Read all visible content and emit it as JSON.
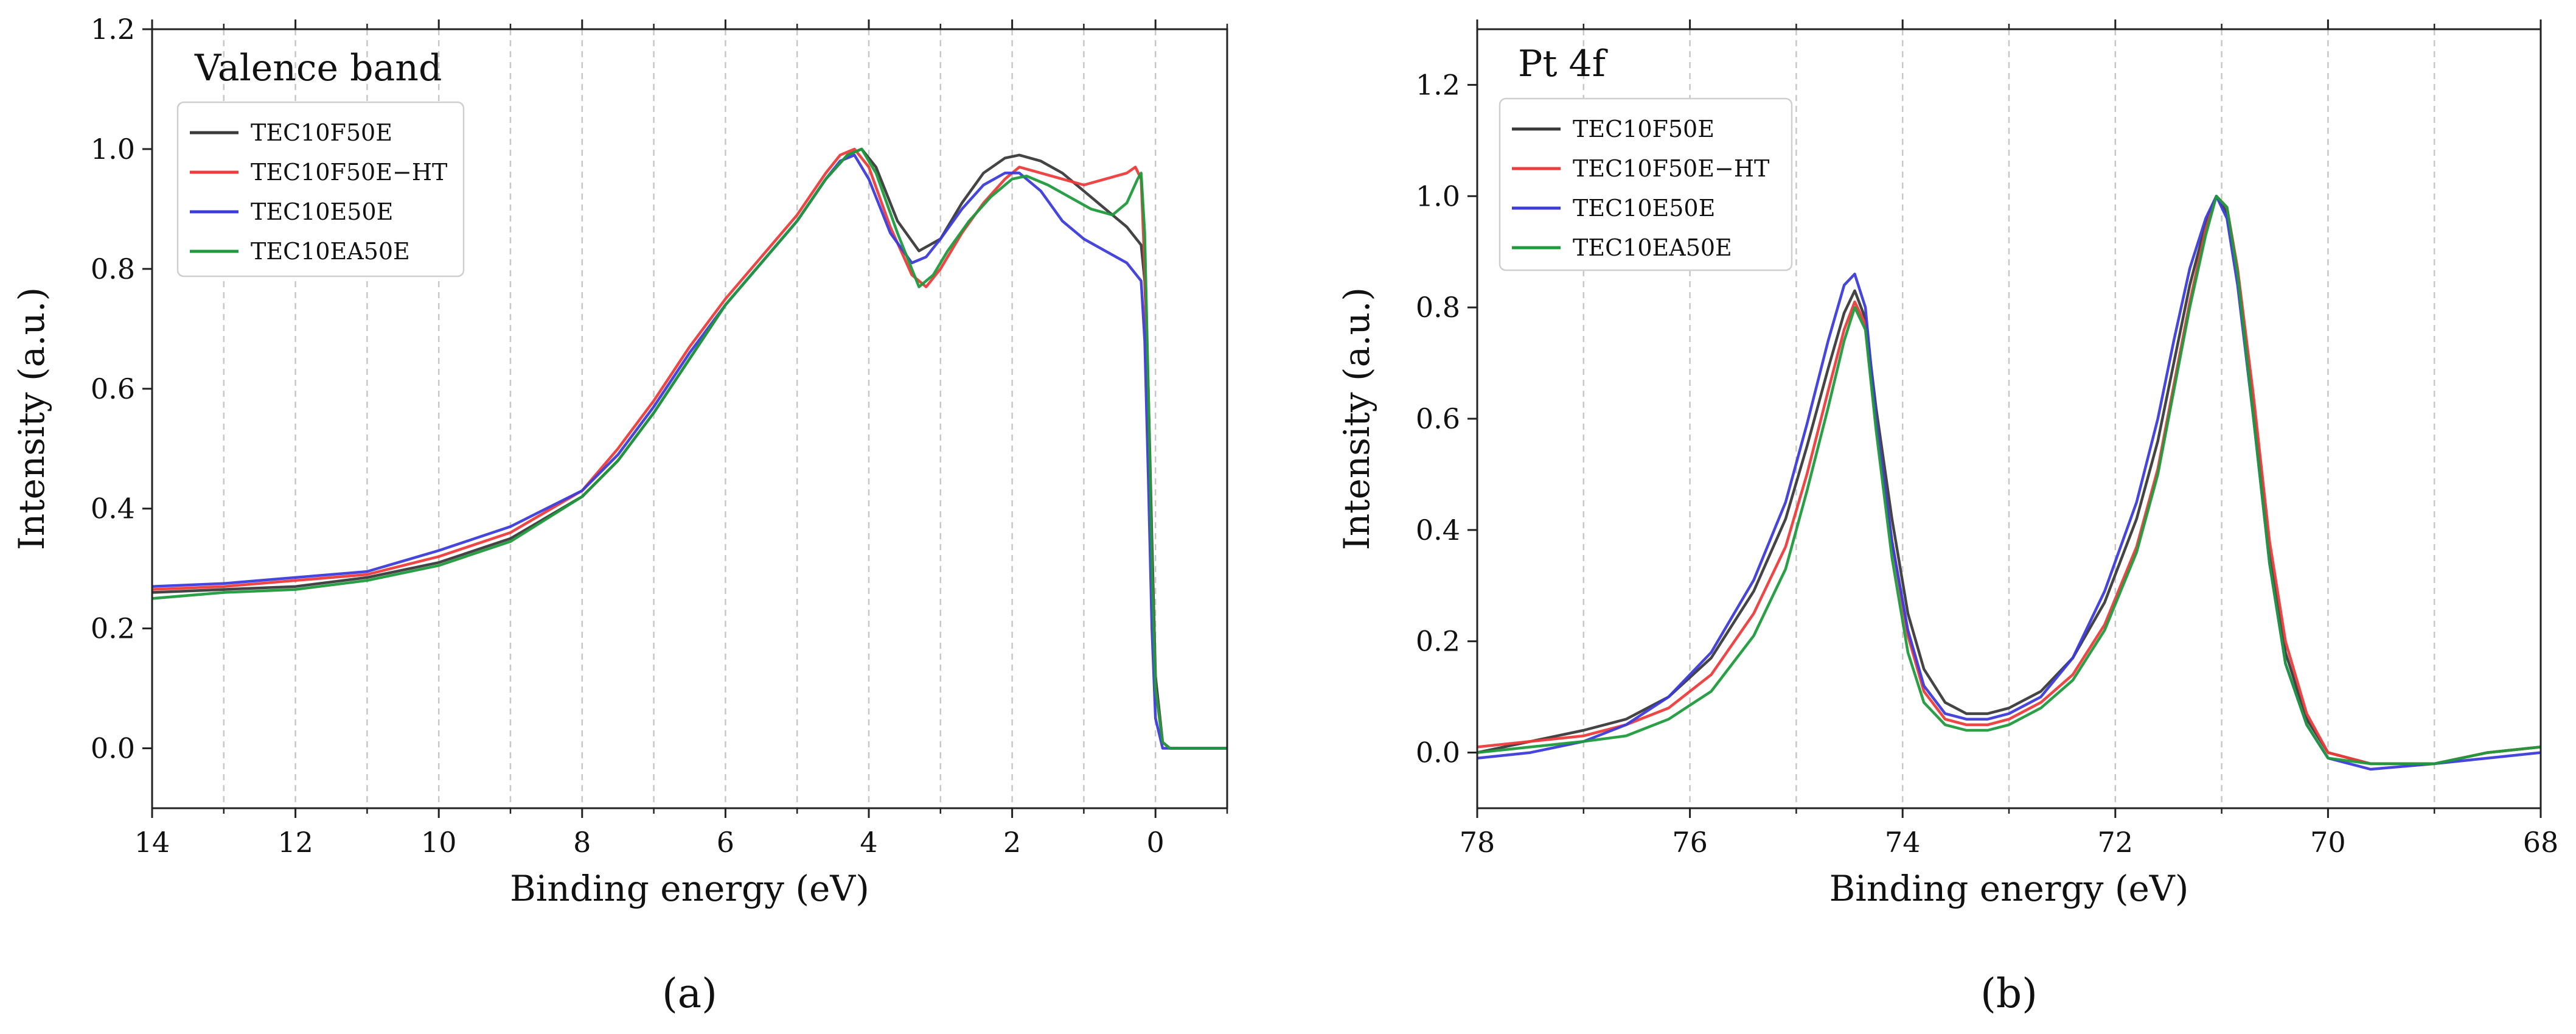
{
  "chart_data": [
    {
      "type": "line",
      "panel_label": "(a)",
      "title": "Valence band",
      "xlabel": "Binding energy (eV)",
      "ylabel": "Intensity (a.u.)",
      "xlim": [
        14,
        -1
      ],
      "ylim": [
        -0.1,
        1.2
      ],
      "x_ticks": [
        14,
        12,
        10,
        8,
        6,
        4,
        2,
        0
      ],
      "x_tick_labels": [
        "14",
        "12",
        "10",
        "8",
        "6",
        "4",
        "2",
        "0"
      ],
      "x_minor_ticks": [
        13,
        11,
        9,
        7,
        5,
        3,
        1,
        -1
      ],
      "y_ticks": [
        0.0,
        0.2,
        0.4,
        0.6,
        0.8,
        1.0,
        1.2
      ],
      "y_tick_labels": [
        "0.0",
        "0.2",
        "0.4",
        "0.6",
        "0.8",
        "1.0",
        "1.2"
      ],
      "vertical_grid": true,
      "legend_position": "upper-left",
      "series": [
        {
          "name": "TEC10F50E",
          "color": "#3a3a3a",
          "x": [
            14,
            13,
            12,
            11,
            10,
            9,
            8,
            7.5,
            7,
            6.5,
            6,
            5.5,
            5,
            4.6,
            4.3,
            4.1,
            3.9,
            3.6,
            3.3,
            3,
            2.7,
            2.4,
            2.1,
            1.9,
            1.6,
            1.3,
            1,
            0.7,
            0.4,
            0.2,
            0.15,
            0.1,
            0.05,
            0,
            -0.1,
            -0.2,
            -0.5,
            -1
          ],
          "y": [
            0.26,
            0.265,
            0.27,
            0.285,
            0.31,
            0.35,
            0.42,
            0.48,
            0.56,
            0.65,
            0.74,
            0.81,
            0.88,
            0.95,
            0.99,
            1.0,
            0.97,
            0.88,
            0.83,
            0.85,
            0.91,
            0.96,
            0.985,
            0.99,
            0.98,
            0.96,
            0.93,
            0.9,
            0.87,
            0.84,
            0.78,
            0.6,
            0.35,
            0.12,
            0.01,
            0.0,
            0.0,
            0.0
          ]
        },
        {
          "name": "TEC10F50E−HT",
          "color": "#ee3b3b",
          "x": [
            14,
            13,
            12,
            11,
            10,
            9,
            8,
            7.5,
            7,
            6.5,
            6,
            5.5,
            5,
            4.6,
            4.4,
            4.2,
            4,
            3.7,
            3.4,
            3.2,
            3,
            2.7,
            2.4,
            2.1,
            1.9,
            1.6,
            1.3,
            1,
            0.7,
            0.4,
            0.28,
            0.2,
            0.15,
            0.1,
            0.05,
            0,
            -0.1,
            -0.2,
            -0.5,
            -1
          ],
          "y": [
            0.265,
            0.27,
            0.28,
            0.29,
            0.32,
            0.36,
            0.43,
            0.5,
            0.58,
            0.67,
            0.75,
            0.82,
            0.89,
            0.96,
            0.99,
            1.0,
            0.97,
            0.87,
            0.79,
            0.77,
            0.8,
            0.86,
            0.91,
            0.95,
            0.97,
            0.96,
            0.95,
            0.94,
            0.95,
            0.96,
            0.97,
            0.95,
            0.8,
            0.55,
            0.3,
            0.1,
            0.01,
            0.0,
            0.0,
            0.0
          ]
        },
        {
          "name": "TEC10E50E",
          "color": "#3c3cdc",
          "x": [
            14,
            13,
            12,
            11,
            10,
            9,
            8,
            7.5,
            7,
            6.5,
            6,
            5.5,
            5,
            4.6,
            4.4,
            4.2,
            4,
            3.7,
            3.4,
            3.2,
            3,
            2.7,
            2.4,
            2.1,
            1.9,
            1.6,
            1.3,
            1,
            0.7,
            0.4,
            0.2,
            0.15,
            0.1,
            0.05,
            0,
            -0.1,
            -0.2,
            -0.5,
            -1
          ],
          "y": [
            0.27,
            0.275,
            0.285,
            0.295,
            0.33,
            0.37,
            0.43,
            0.49,
            0.57,
            0.66,
            0.74,
            0.81,
            0.88,
            0.95,
            0.98,
            0.99,
            0.95,
            0.86,
            0.81,
            0.82,
            0.85,
            0.9,
            0.94,
            0.96,
            0.96,
            0.93,
            0.88,
            0.85,
            0.83,
            0.81,
            0.78,
            0.68,
            0.45,
            0.2,
            0.05,
            0.0,
            0.0,
            0.0,
            0.0
          ]
        },
        {
          "name": "TEC10EA50E",
          "color": "#1e9a3c",
          "x": [
            14,
            13,
            12,
            11,
            10,
            9,
            8,
            7.5,
            7,
            6.5,
            6,
            5.5,
            5,
            4.6,
            4.3,
            4.1,
            3.9,
            3.6,
            3.3,
            3.1,
            2.9,
            2.6,
            2.3,
            2,
            1.8,
            1.5,
            1.2,
            0.9,
            0.6,
            0.4,
            0.25,
            0.2,
            0.15,
            0.1,
            0.05,
            0,
            -0.1,
            -0.2,
            -0.5,
            -1
          ],
          "y": [
            0.25,
            0.26,
            0.265,
            0.28,
            0.305,
            0.345,
            0.42,
            0.48,
            0.56,
            0.65,
            0.74,
            0.81,
            0.88,
            0.95,
            0.99,
            1.0,
            0.96,
            0.86,
            0.77,
            0.79,
            0.83,
            0.88,
            0.92,
            0.95,
            0.955,
            0.94,
            0.92,
            0.9,
            0.89,
            0.91,
            0.95,
            0.96,
            0.86,
            0.6,
            0.3,
            0.1,
            0.01,
            0.0,
            0.0,
            0.0
          ]
        }
      ]
    },
    {
      "type": "line",
      "panel_label": "(b)",
      "title": "Pt 4f",
      "xlabel": "Binding energy (eV)",
      "ylabel": "Intensity (a.u.)",
      "xlim": [
        78,
        68
      ],
      "ylim": [
        -0.1,
        1.3
      ],
      "x_ticks": [
        78,
        76,
        74,
        72,
        70,
        68
      ],
      "x_tick_labels": [
        "78",
        "76",
        "74",
        "72",
        "70",
        "68"
      ],
      "x_minor_ticks": [
        77,
        75,
        73,
        71,
        69
      ],
      "y_ticks": [
        0.0,
        0.2,
        0.4,
        0.6,
        0.8,
        1.0,
        1.2
      ],
      "y_tick_labels": [
        "0.0",
        "0.2",
        "0.4",
        "0.6",
        "0.8",
        "1.0",
        "1.2"
      ],
      "vertical_grid": true,
      "legend_position": "upper-left",
      "series": [
        {
          "name": "TEC10F50E",
          "color": "#3a3a3a",
          "x": [
            78,
            77.5,
            77,
            76.6,
            76.2,
            75.8,
            75.4,
            75.1,
            74.9,
            74.7,
            74.55,
            74.45,
            74.35,
            74.25,
            74.1,
            73.95,
            73.8,
            73.6,
            73.4,
            73.2,
            73,
            72.7,
            72.4,
            72.1,
            71.8,
            71.6,
            71.45,
            71.3,
            71.15,
            71.05,
            70.95,
            70.85,
            70.7,
            70.55,
            70.4,
            70.2,
            70,
            69.6,
            69,
            68.5,
            68
          ],
          "y": [
            0.0,
            0.02,
            0.04,
            0.06,
            0.1,
            0.17,
            0.29,
            0.42,
            0.55,
            0.69,
            0.79,
            0.83,
            0.78,
            0.62,
            0.42,
            0.25,
            0.15,
            0.09,
            0.07,
            0.07,
            0.08,
            0.11,
            0.17,
            0.27,
            0.42,
            0.56,
            0.7,
            0.84,
            0.95,
            1.0,
            0.97,
            0.86,
            0.62,
            0.36,
            0.18,
            0.06,
            0.0,
            -0.02,
            -0.02,
            0.0,
            0.01
          ]
        },
        {
          "name": "TEC10F50E−HT",
          "color": "#ee3b3b",
          "x": [
            78,
            77.5,
            77,
            76.6,
            76.2,
            75.8,
            75.4,
            75.1,
            74.9,
            74.7,
            74.55,
            74.45,
            74.35,
            74.25,
            74.1,
            73.95,
            73.8,
            73.6,
            73.4,
            73.2,
            73,
            72.7,
            72.4,
            72.1,
            71.8,
            71.6,
            71.45,
            71.3,
            71.15,
            71.05,
            70.95,
            70.85,
            70.7,
            70.55,
            70.4,
            70.2,
            70,
            69.6,
            69,
            68.5,
            68
          ],
          "y": [
            0.01,
            0.02,
            0.03,
            0.05,
            0.08,
            0.14,
            0.25,
            0.37,
            0.5,
            0.65,
            0.76,
            0.81,
            0.77,
            0.6,
            0.38,
            0.21,
            0.11,
            0.06,
            0.05,
            0.05,
            0.06,
            0.09,
            0.14,
            0.23,
            0.37,
            0.51,
            0.66,
            0.81,
            0.94,
            1.0,
            0.98,
            0.87,
            0.64,
            0.38,
            0.2,
            0.07,
            0.0,
            -0.02,
            -0.02,
            0.0,
            0.01
          ]
        },
        {
          "name": "TEC10E50E",
          "color": "#3c3cdc",
          "x": [
            78,
            77.5,
            77,
            76.6,
            76.2,
            75.8,
            75.4,
            75.1,
            74.9,
            74.7,
            74.55,
            74.45,
            74.35,
            74.25,
            74.1,
            73.95,
            73.8,
            73.6,
            73.4,
            73.2,
            73,
            72.7,
            72.4,
            72.1,
            71.8,
            71.6,
            71.45,
            71.3,
            71.15,
            71.05,
            70.95,
            70.85,
            70.7,
            70.55,
            70.4,
            70.2,
            70,
            69.6,
            69,
            68.5,
            68
          ],
          "y": [
            -0.01,
            0.0,
            0.02,
            0.05,
            0.1,
            0.18,
            0.31,
            0.45,
            0.59,
            0.74,
            0.84,
            0.86,
            0.8,
            0.6,
            0.38,
            0.22,
            0.12,
            0.07,
            0.06,
            0.06,
            0.07,
            0.1,
            0.17,
            0.29,
            0.45,
            0.6,
            0.74,
            0.87,
            0.96,
            1.0,
            0.96,
            0.84,
            0.6,
            0.34,
            0.16,
            0.05,
            -0.01,
            -0.03,
            -0.02,
            -0.01,
            0.0
          ]
        },
        {
          "name": "TEC10EA50E",
          "color": "#1e9a3c",
          "x": [
            78,
            77.5,
            77,
            76.6,
            76.2,
            75.8,
            75.4,
            75.1,
            74.9,
            74.7,
            74.55,
            74.45,
            74.35,
            74.25,
            74.1,
            73.95,
            73.8,
            73.6,
            73.4,
            73.2,
            73,
            72.7,
            72.4,
            72.1,
            71.8,
            71.6,
            71.45,
            71.3,
            71.15,
            71.05,
            70.95,
            70.85,
            70.7,
            70.55,
            70.4,
            70.2,
            70,
            69.6,
            69,
            68.5,
            68
          ],
          "y": [
            0.0,
            0.01,
            0.02,
            0.03,
            0.06,
            0.11,
            0.21,
            0.33,
            0.47,
            0.62,
            0.74,
            0.8,
            0.76,
            0.58,
            0.35,
            0.18,
            0.09,
            0.05,
            0.04,
            0.04,
            0.05,
            0.08,
            0.13,
            0.22,
            0.36,
            0.5,
            0.65,
            0.8,
            0.93,
            1.0,
            0.98,
            0.86,
            0.6,
            0.34,
            0.16,
            0.05,
            -0.01,
            -0.02,
            -0.02,
            0.0,
            0.01
          ]
        }
      ]
    }
  ]
}
